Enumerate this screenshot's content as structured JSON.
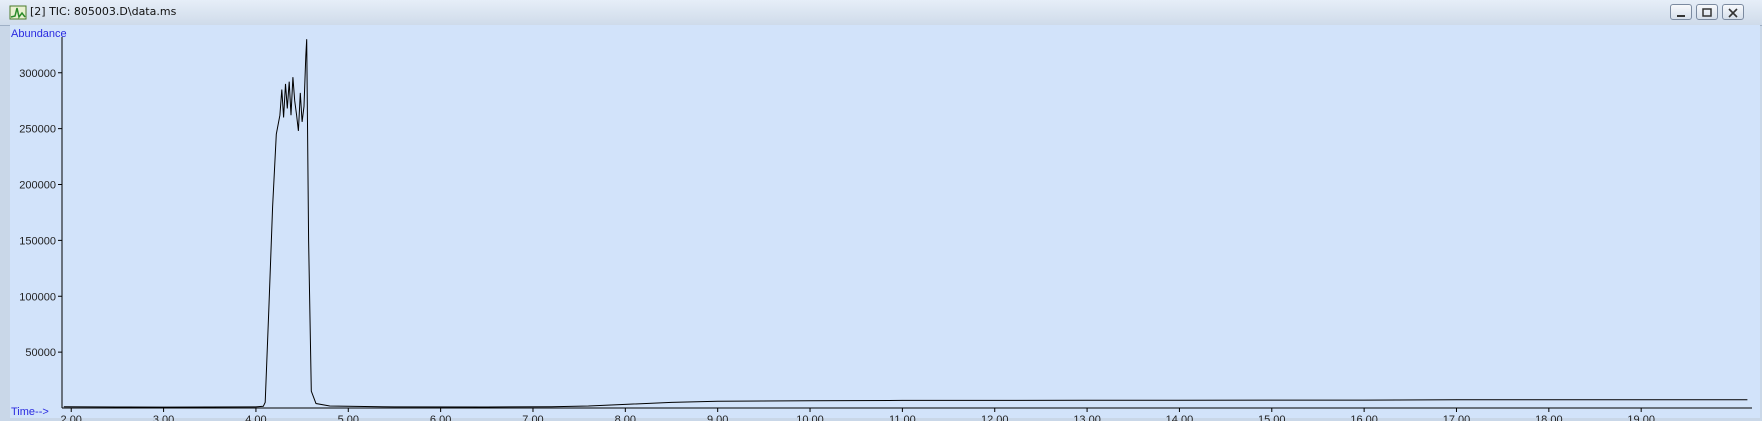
{
  "window": {
    "title": "[2] TIC: 805003.D\\data.ms",
    "icon": "chromatogram-app-icon"
  },
  "chart_data": {
    "type": "line",
    "title": "",
    "ylabel": "Abundance",
    "xlabel": "Time-->",
    "xlim": [
      1.9,
      20.2
    ],
    "ylim": [
      0,
      332000
    ],
    "x_ticks": [
      "2.00",
      "3.00",
      "4.00",
      "5.00",
      "6.00",
      "7.00",
      "8.00",
      "9.00",
      "10.00",
      "11.00",
      "12.00",
      "13.00",
      "14.00",
      "15.00",
      "16.00",
      "17.00",
      "18.00",
      "19.00"
    ],
    "y_ticks": [
      "50000",
      "100000",
      "150000",
      "200000",
      "250000",
      "300000"
    ],
    "grid": false,
    "series": [
      {
        "color": "#000000",
        "x": [
          1.92,
          2.5,
          3.0,
          3.5,
          4.0,
          4.08,
          4.1,
          4.14,
          4.18,
          4.22,
          4.26,
          4.28,
          4.3,
          4.32,
          4.34,
          4.36,
          4.38,
          4.4,
          4.42,
          4.44,
          4.46,
          4.48,
          4.5,
          4.52,
          4.54,
          4.55,
          4.57,
          4.6,
          4.65,
          4.8,
          5.5,
          6.5,
          7.2,
          7.6,
          8.0,
          8.5,
          9.0,
          10.0,
          11.0,
          12.0,
          13.0,
          14.0,
          15.0,
          16.0,
          17.0,
          18.0,
          19.0,
          20.15
        ],
        "y": [
          1200,
          900,
          800,
          900,
          1000,
          1500,
          5000,
          90000,
          180000,
          245000,
          262000,
          285000,
          260000,
          290000,
          268000,
          292000,
          262000,
          296000,
          275000,
          262000,
          248000,
          282000,
          256000,
          270000,
          315000,
          330000,
          150000,
          15000,
          4000,
          1800,
          1000,
          900,
          1200,
          1800,
          3200,
          5000,
          6000,
          6500,
          6800,
          6800,
          7000,
          7000,
          7100,
          7100,
          7300,
          7400,
          7400,
          7300
        ]
      }
    ]
  }
}
